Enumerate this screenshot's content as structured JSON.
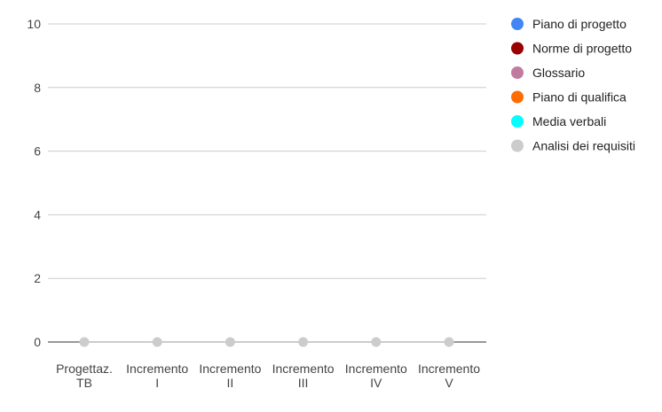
{
  "chart_data": {
    "type": "line",
    "categories": [
      [
        "Progettaz.",
        "TB"
      ],
      [
        "Incremento",
        "I"
      ],
      [
        "Incremento",
        "II"
      ],
      [
        "Incremento",
        "III"
      ],
      [
        "Incremento",
        "IV"
      ],
      [
        "Incremento",
        "V"
      ]
    ],
    "series": [
      {
        "name": "Piano di progetto",
        "color": "#4285f4",
        "values": [
          0,
          0,
          0,
          0,
          0,
          0
        ]
      },
      {
        "name": "Norme di progetto",
        "color": "#990000",
        "values": [
          0,
          0,
          0,
          0,
          0,
          0
        ]
      },
      {
        "name": "Glossario",
        "color": "#c27ba0",
        "values": [
          0,
          0,
          0,
          0,
          0,
          0
        ]
      },
      {
        "name": "Piano di qualifica",
        "color": "#ff6d01",
        "values": [
          0,
          0,
          0,
          0,
          0,
          0
        ]
      },
      {
        "name": "Media verbali",
        "color": "#00ffff",
        "values": [
          0,
          0,
          0,
          0,
          0,
          0
        ]
      },
      {
        "name": "Analisi dei requisiti",
        "color": "#cccccc",
        "values": [
          0,
          0,
          0,
          0,
          0,
          0
        ]
      }
    ],
    "yticks": [
      "0",
      "2",
      "4",
      "6",
      "8",
      "10"
    ],
    "ylim": [
      0,
      10
    ],
    "grid": true,
    "legend_position": "right",
    "title": "",
    "xlabel": "",
    "ylabel": ""
  }
}
